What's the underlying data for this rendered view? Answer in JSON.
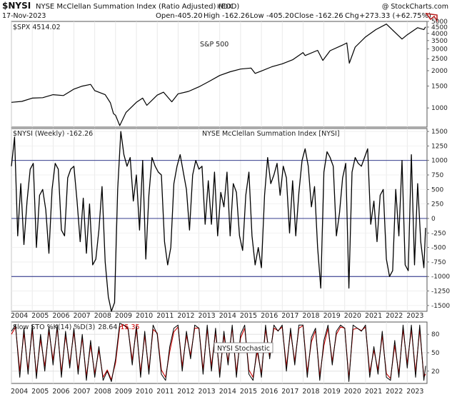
{
  "header": {
    "symbol": "$NYSI",
    "name": "NYSE McClellan Summation Index (Ratio Adjusted) (EOD)",
    "exchange": "INDX",
    "date": "17-Nov-2023",
    "open_label": "Open",
    "open": "-405.20",
    "high_label": "High",
    "high": "-162.26",
    "low_label": "Low",
    "low": "-405.20",
    "close_label": "Close",
    "close": "-162.26",
    "chg_label": "Chg",
    "chg": "+273.33 (+62.75%)",
    "watermark": "@ StockCharts.com",
    "logo_icon": "stockcharts-arrow-icon"
  },
  "colors": {
    "line": "#000000",
    "stoch_k": "#000000",
    "stoch_d": "#cc0000",
    "ref_lines": "#1a237e",
    "frame": "#555555"
  },
  "chart_data": [
    {
      "type": "line",
      "panel": "price",
      "legend": "$SPX 4514.02",
      "annotation": "S&P 500",
      "scale": "log",
      "ylim": [
        700,
        5000
      ],
      "yticks": [
        1000,
        1500,
        2000,
        2500,
        3000,
        3500,
        4000,
        4500,
        5000
      ],
      "series": [
        {
          "name": "$SPX",
          "x": [
            2004.0,
            2004.5,
            2005.0,
            2005.5,
            2006.0,
            2006.5,
            2007.0,
            2007.4,
            2007.8,
            2008.0,
            2008.5,
            2008.75,
            2008.9,
            2009.0,
            2009.2,
            2009.5,
            2010.0,
            2010.3,
            2010.5,
            2011.0,
            2011.3,
            2011.7,
            2012.0,
            2012.5,
            2013.0,
            2013.5,
            2014.0,
            2014.5,
            2015.0,
            2015.5,
            2015.7,
            2016.0,
            2016.5,
            2017.0,
            2017.5,
            2018.0,
            2018.1,
            2018.7,
            2018.95,
            2019.3,
            2019.9,
            2020.1,
            2020.22,
            2020.5,
            2021.0,
            2021.5,
            2022.0,
            2022.4,
            2022.75,
            2023.0,
            2023.5,
            2023.8,
            2023.88
          ],
          "y": [
            1110,
            1130,
            1200,
            1210,
            1280,
            1260,
            1420,
            1500,
            1550,
            1380,
            1280,
            1100,
            900,
            870,
            720,
            920,
            1110,
            1200,
            1050,
            1270,
            1340,
            1120,
            1300,
            1360,
            1480,
            1640,
            1830,
            1960,
            2060,
            2100,
            1900,
            1990,
            2150,
            2270,
            2450,
            2800,
            2650,
            2920,
            2420,
            2900,
            3220,
            3350,
            2300,
            3100,
            3750,
            4300,
            4760,
            4100,
            3600,
            3900,
            4450,
            4300,
            4514
          ]
        }
      ]
    },
    {
      "type": "line",
      "panel": "nysi",
      "title": "NYSE McClellan Summation Index [NYSI]",
      "legend": "$NYSI (Weekly) -162.26",
      "ylim": [
        -1600,
        1550
      ],
      "yticks": [
        -1500,
        -1250,
        -1000,
        -750,
        -500,
        -250,
        0,
        250,
        500,
        750,
        1000,
        1250,
        1500
      ],
      "reference_lines": [
        1000,
        0,
        -1000
      ],
      "series": [
        {
          "name": "$NYSI (Weekly)",
          "x": [
            2004.0,
            2004.15,
            2004.3,
            2004.45,
            2004.6,
            2004.75,
            2004.9,
            2005.05,
            2005.2,
            2005.35,
            2005.5,
            2005.65,
            2005.8,
            2005.95,
            2006.1,
            2006.25,
            2006.4,
            2006.55,
            2006.7,
            2006.85,
            2007.0,
            2007.15,
            2007.3,
            2007.45,
            2007.6,
            2007.75,
            2007.9,
            2008.05,
            2008.2,
            2008.35,
            2008.5,
            2008.65,
            2008.8,
            2008.95,
            2009.1,
            2009.25,
            2009.4,
            2009.55,
            2009.7,
            2009.85,
            2010.0,
            2010.15,
            2010.3,
            2010.45,
            2010.6,
            2010.75,
            2010.9,
            2011.05,
            2011.2,
            2011.35,
            2011.5,
            2011.65,
            2011.8,
            2011.95,
            2012.1,
            2012.25,
            2012.4,
            2012.55,
            2012.7,
            2012.85,
            2013.0,
            2013.15,
            2013.3,
            2013.45,
            2013.6,
            2013.75,
            2013.9,
            2014.05,
            2014.2,
            2014.35,
            2014.5,
            2014.65,
            2014.8,
            2014.95,
            2015.1,
            2015.25,
            2015.4,
            2015.55,
            2015.7,
            2015.85,
            2016.0,
            2016.15,
            2016.3,
            2016.45,
            2016.6,
            2016.75,
            2016.9,
            2017.05,
            2017.2,
            2017.35,
            2017.5,
            2017.65,
            2017.8,
            2017.95,
            2018.1,
            2018.25,
            2018.4,
            2018.55,
            2018.7,
            2018.85,
            2019.0,
            2019.15,
            2019.3,
            2019.45,
            2019.6,
            2019.75,
            2019.9,
            2020.05,
            2020.2,
            2020.35,
            2020.5,
            2020.65,
            2020.8,
            2020.95,
            2021.1,
            2021.25,
            2021.4,
            2021.55,
            2021.7,
            2021.85,
            2022.0,
            2022.15,
            2022.3,
            2022.45,
            2022.6,
            2022.75,
            2022.9,
            2023.05,
            2023.2,
            2023.35,
            2023.5,
            2023.65,
            2023.8,
            2023.88
          ],
          "y": [
            900,
            1400,
            -300,
            600,
            -450,
            300,
            850,
            950,
            -500,
            400,
            500,
            150,
            -600,
            500,
            950,
            850,
            -200,
            -300,
            700,
            850,
            900,
            300,
            -400,
            350,
            -600,
            250,
            -800,
            -700,
            -200,
            550,
            -750,
            -1350,
            -1600,
            -1450,
            500,
            1500,
            1100,
            900,
            1050,
            300,
            750,
            -200,
            1000,
            -700,
            400,
            1050,
            900,
            800,
            750,
            -400,
            -800,
            -500,
            600,
            900,
            1100,
            800,
            500,
            -200,
            750,
            1000,
            850,
            900,
            -100,
            650,
            -100,
            800,
            -300,
            450,
            200,
            800,
            -300,
            600,
            450,
            -300,
            -550,
            400,
            800,
            -300,
            -800,
            -500,
            -850,
            400,
            1050,
            600,
            750,
            950,
            400,
            900,
            700,
            -250,
            650,
            -300,
            450,
            1000,
            1200,
            900,
            200,
            550,
            -500,
            -1200,
            800,
            1150,
            1050,
            900,
            -300,
            100,
            700,
            950,
            -1200,
            800,
            1050,
            950,
            900,
            1050,
            1200,
            -100,
            300,
            -400,
            400,
            500,
            -700,
            -1000,
            -900,
            500,
            -300,
            1000,
            -800,
            -900,
            1100,
            -800,
            600,
            -400,
            -850,
            -162
          ]
        }
      ]
    },
    {
      "type": "line",
      "panel": "stochastic",
      "title": "NYSI Stochastic",
      "legend_prefix": "Slow STO %K(14) %D(3)",
      "k_value": "28.64",
      "d_value": "15.35",
      "ylim": [
        0,
        100
      ],
      "yticks": [
        20,
        50,
        80
      ],
      "series": [
        {
          "name": "%K(14)",
          "x": [
            2004.0,
            2004.2,
            2004.4,
            2004.6,
            2004.8,
            2005.0,
            2005.2,
            2005.4,
            2005.6,
            2005.8,
            2006.0,
            2006.2,
            2006.4,
            2006.6,
            2006.8,
            2007.0,
            2007.2,
            2007.4,
            2007.6,
            2007.8,
            2008.0,
            2008.2,
            2008.4,
            2008.6,
            2008.8,
            2009.0,
            2009.2,
            2009.4,
            2009.6,
            2009.8,
            2010.0,
            2010.2,
            2010.4,
            2010.6,
            2010.8,
            2011.0,
            2011.2,
            2011.4,
            2011.6,
            2011.8,
            2012.0,
            2012.2,
            2012.4,
            2012.6,
            2012.8,
            2013.0,
            2013.2,
            2013.4,
            2013.6,
            2013.8,
            2014.0,
            2014.2,
            2014.4,
            2014.6,
            2014.8,
            2015.0,
            2015.2,
            2015.4,
            2015.6,
            2015.8,
            2016.0,
            2016.2,
            2016.4,
            2016.6,
            2016.8,
            2017.0,
            2017.2,
            2017.4,
            2017.6,
            2017.8,
            2018.0,
            2018.2,
            2018.4,
            2018.6,
            2018.8,
            2019.0,
            2019.2,
            2019.4,
            2019.6,
            2019.8,
            2020.0,
            2020.2,
            2020.4,
            2020.6,
            2020.8,
            2021.0,
            2021.2,
            2021.4,
            2021.6,
            2021.8,
            2022.0,
            2022.2,
            2022.4,
            2022.6,
            2022.8,
            2023.0,
            2023.2,
            2023.4,
            2023.6,
            2023.8,
            2023.88
          ],
          "y": [
            85,
            95,
            10,
            90,
            15,
            95,
            8,
            80,
            20,
            92,
            30,
            95,
            10,
            85,
            25,
            90,
            15,
            80,
            5,
            70,
            10,
            60,
            5,
            20,
            3,
            40,
            98,
            95,
            90,
            30,
            95,
            10,
            85,
            15,
            95,
            80,
            15,
            5,
            60,
            90,
            95,
            20,
            85,
            40,
            95,
            90,
            15,
            95,
            20,
            90,
            10,
            85,
            30,
            95,
            10,
            80,
            95,
            15,
            5,
            60,
            10,
            95,
            40,
            95,
            85,
            95,
            20,
            90,
            30,
            95,
            95,
            10,
            75,
            90,
            5,
            70,
            95,
            30,
            85,
            95,
            90,
            3,
            95,
            90,
            85,
            95,
            10,
            60,
            15,
            85,
            10,
            5,
            70,
            10,
            95,
            25,
            95,
            10,
            95,
            5,
            28.64
          ]
        },
        {
          "name": "%D(3)",
          "x": [
            2004.0,
            2004.2,
            2004.4,
            2004.6,
            2004.8,
            2005.0,
            2005.2,
            2005.4,
            2005.6,
            2005.8,
            2006.0,
            2006.2,
            2006.4,
            2006.6,
            2006.8,
            2007.0,
            2007.2,
            2007.4,
            2007.6,
            2007.8,
            2008.0,
            2008.2,
            2008.4,
            2008.6,
            2008.8,
            2009.0,
            2009.2,
            2009.4,
            2009.6,
            2009.8,
            2010.0,
            2010.2,
            2010.4,
            2010.6,
            2010.8,
            2011.0,
            2011.2,
            2011.4,
            2011.6,
            2011.8,
            2012.0,
            2012.2,
            2012.4,
            2012.6,
            2012.8,
            2013.0,
            2013.2,
            2013.4,
            2013.6,
            2013.8,
            2014.0,
            2014.2,
            2014.4,
            2014.6,
            2014.8,
            2015.0,
            2015.2,
            2015.4,
            2015.6,
            2015.8,
            2016.0,
            2016.2,
            2016.4,
            2016.6,
            2016.8,
            2017.0,
            2017.2,
            2017.4,
            2017.6,
            2017.8,
            2018.0,
            2018.2,
            2018.4,
            2018.6,
            2018.8,
            2019.0,
            2019.2,
            2019.4,
            2019.6,
            2019.8,
            2020.0,
            2020.2,
            2020.4,
            2020.6,
            2020.8,
            2021.0,
            2021.2,
            2021.4,
            2021.6,
            2021.8,
            2022.0,
            2022.2,
            2022.4,
            2022.6,
            2022.8,
            2023.0,
            2023.2,
            2023.4,
            2023.6,
            2023.8,
            2023.88
          ],
          "y": [
            80,
            92,
            20,
            82,
            22,
            88,
            15,
            72,
            28,
            86,
            38,
            90,
            18,
            78,
            32,
            84,
            22,
            74,
            12,
            62,
            16,
            54,
            10,
            22,
            6,
            34,
            92,
            95,
            88,
            38,
            88,
            18,
            78,
            22,
            88,
            82,
            22,
            10,
            52,
            84,
            92,
            28,
            78,
            46,
            90,
            90,
            22,
            88,
            28,
            84,
            16,
            78,
            36,
            90,
            18,
            74,
            90,
            22,
            10,
            52,
            16,
            88,
            46,
            90,
            86,
            92,
            28,
            84,
            36,
            90,
            94,
            18,
            68,
            86,
            12,
            62,
            90,
            36,
            80,
            92,
            90,
            8,
            88,
            90,
            86,
            92,
            18,
            54,
            22,
            78,
            16,
            8,
            62,
            16,
            88,
            32,
            88,
            18,
            88,
            10,
            15.35
          ]
        }
      ]
    }
  ],
  "x_axis": {
    "years": [
      "2004",
      "2005",
      "2006",
      "2007",
      "2008",
      "2009",
      "2010",
      "2011",
      "2012",
      "2013",
      "2014",
      "2015",
      "2016",
      "2017",
      "2018",
      "2019",
      "2020",
      "2021",
      "2022",
      "2023"
    ]
  }
}
